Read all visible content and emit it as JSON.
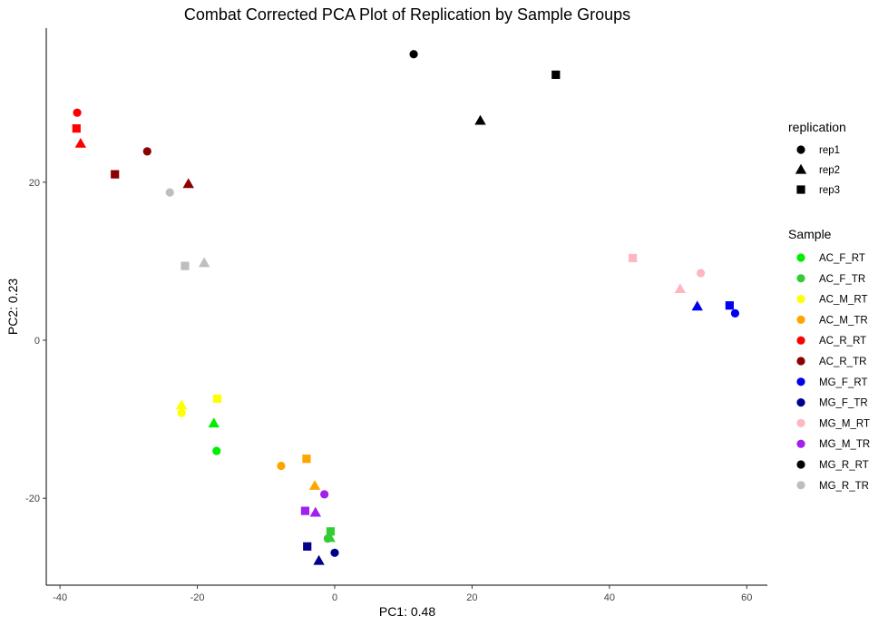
{
  "chart_data": {
    "type": "scatter",
    "title": "Combat Corrected PCA Plot of Replication by Sample Groups",
    "xlabel": "PC1: 0.48",
    "ylabel": "PC2: 0.23",
    "xlim": [
      -42,
      63
    ],
    "ylim": [
      -31,
      39.5
    ],
    "xticks": [
      -40,
      -20,
      0,
      20,
      40,
      60
    ],
    "yticks": [
      -20,
      0,
      20
    ],
    "grid": false,
    "legends": [
      {
        "title": "replication",
        "position": "right",
        "entries": [
          {
            "label": "rep1",
            "shape": "circle"
          },
          {
            "label": "rep2",
            "shape": "triangle"
          },
          {
            "label": "rep3",
            "shape": "square"
          }
        ]
      },
      {
        "title": "Sample",
        "position": "right",
        "entries": [
          {
            "label": "AC_F_RT",
            "color": "#00ee00"
          },
          {
            "label": "AC_F_TR",
            "color": "#33cc33"
          },
          {
            "label": "AC_M_RT",
            "color": "#ffff00"
          },
          {
            "label": "AC_M_TR",
            "color": "#ffa500"
          },
          {
            "label": "AC_R_RT",
            "color": "#ff0000"
          },
          {
            "label": "AC_R_TR",
            "color": "#8b0000"
          },
          {
            "label": "MG_F_RT",
            "color": "#0000ee"
          },
          {
            "label": "MG_F_TR",
            "color": "#00008b"
          },
          {
            "label": "MG_M_RT",
            "color": "#ffb6c1"
          },
          {
            "label": "MG_M_TR",
            "color": "#a020f0"
          },
          {
            "label": "MG_R_RT",
            "color": "#000000"
          },
          {
            "label": "MG_R_TR",
            "color": "#bebebe"
          }
        ]
      }
    ],
    "points": [
      {
        "sample": "MG_R_RT",
        "replication": "rep1",
        "x": 11.5,
        "y": 36.2
      },
      {
        "sample": "MG_R_RT",
        "replication": "rep2",
        "x": 21.2,
        "y": 27.8
      },
      {
        "sample": "MG_R_RT",
        "replication": "rep3",
        "x": 32.2,
        "y": 33.6
      },
      {
        "sample": "AC_R_RT",
        "replication": "rep1",
        "x": -37.5,
        "y": 28.8
      },
      {
        "sample": "AC_R_RT",
        "replication": "rep2",
        "x": -37.0,
        "y": 24.9
      },
      {
        "sample": "AC_R_RT",
        "replication": "rep3",
        "x": -37.6,
        "y": 26.8
      },
      {
        "sample": "AC_R_TR",
        "replication": "rep1",
        "x": -27.3,
        "y": 23.9
      },
      {
        "sample": "AC_R_TR",
        "replication": "rep2",
        "x": -21.3,
        "y": 19.8
      },
      {
        "sample": "AC_R_TR",
        "replication": "rep3",
        "x": -32.0,
        "y": 21.0
      },
      {
        "sample": "MG_R_TR",
        "replication": "rep1",
        "x": -24.0,
        "y": 18.7
      },
      {
        "sample": "MG_R_TR",
        "replication": "rep2",
        "x": -19.0,
        "y": 9.8
      },
      {
        "sample": "MG_R_TR",
        "replication": "rep3",
        "x": -21.8,
        "y": 9.4
      },
      {
        "sample": "MG_M_RT",
        "replication": "rep1",
        "x": 53.3,
        "y": 8.5
      },
      {
        "sample": "MG_M_RT",
        "replication": "rep2",
        "x": 50.3,
        "y": 6.5
      },
      {
        "sample": "MG_M_RT",
        "replication": "rep3",
        "x": 43.4,
        "y": 10.4
      },
      {
        "sample": "MG_F_RT",
        "replication": "rep1",
        "x": 58.3,
        "y": 3.4
      },
      {
        "sample": "MG_F_RT",
        "replication": "rep2",
        "x": 52.8,
        "y": 4.3
      },
      {
        "sample": "MG_F_RT",
        "replication": "rep3",
        "x": 57.5,
        "y": 4.4
      },
      {
        "sample": "AC_M_RT",
        "replication": "rep1",
        "x": -22.3,
        "y": -9.2
      },
      {
        "sample": "AC_M_RT",
        "replication": "rep2",
        "x": -22.3,
        "y": -8.2
      },
      {
        "sample": "AC_M_RT",
        "replication": "rep3",
        "x": -17.1,
        "y": -7.4
      },
      {
        "sample": "AC_F_RT",
        "replication": "rep1",
        "x": -17.2,
        "y": -14.0
      },
      {
        "sample": "AC_F_RT",
        "replication": "rep2",
        "x": -17.6,
        "y": -10.5
      },
      {
        "sample": "AC_M_TR",
        "replication": "rep1",
        "x": -7.8,
        "y": -15.9
      },
      {
        "sample": "AC_M_TR",
        "replication": "rep2",
        "x": -2.9,
        "y": -18.4
      },
      {
        "sample": "AC_M_TR",
        "replication": "rep3",
        "x": -4.1,
        "y": -15.0
      },
      {
        "sample": "MG_M_TR",
        "replication": "rep1",
        "x": -1.5,
        "y": -19.5
      },
      {
        "sample": "MG_M_TR",
        "replication": "rep2",
        "x": -2.8,
        "y": -21.8
      },
      {
        "sample": "MG_M_TR",
        "replication": "rep3",
        "x": -4.3,
        "y": -21.6
      },
      {
        "sample": "AC_F_TR",
        "replication": "rep1",
        "x": -1.0,
        "y": -25.1
      },
      {
        "sample": "AC_F_TR",
        "replication": "rep2",
        "x": -0.7,
        "y": -25.0
      },
      {
        "sample": "AC_F_TR",
        "replication": "rep3",
        "x": -0.6,
        "y": -24.2
      },
      {
        "sample": "MG_F_TR",
        "replication": "rep1",
        "x": 0.0,
        "y": -26.9
      },
      {
        "sample": "MG_F_TR",
        "replication": "rep2",
        "x": -2.3,
        "y": -27.9
      },
      {
        "sample": "MG_F_TR",
        "replication": "rep3",
        "x": -4.0,
        "y": -26.1
      }
    ]
  }
}
